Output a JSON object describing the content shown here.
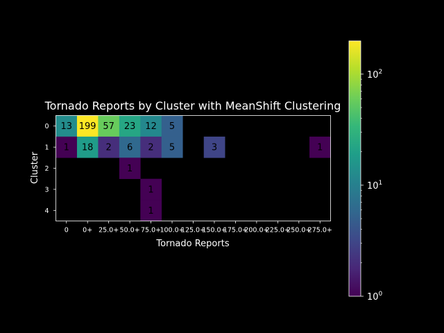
{
  "chart_data": {
    "type": "heatmap",
    "title": "Tornado Reports by Cluster with MeanShift Clustering",
    "xlabel": "Tornado Reports",
    "ylabel": "Cluster",
    "x_categories": [
      "0",
      "0+",
      "25.0+",
      "50.0+",
      "75.0+",
      "100.0+",
      "125.0+",
      "150.0+",
      "175.0+",
      "200.0+",
      "225.0+",
      "250.0+",
      "275.0+"
    ],
    "y_categories": [
      "0",
      "1",
      "2",
      "3",
      "4"
    ],
    "values": [
      [
        13,
        199,
        57,
        23,
        12,
        5,
        0,
        0,
        0,
        0,
        0,
        0,
        0
      ],
      [
        1,
        18,
        2,
        6,
        2,
        5,
        0,
        3,
        0,
        0,
        0,
        0,
        1
      ],
      [
        0,
        0,
        0,
        1,
        0,
        0,
        0,
        0,
        0,
        0,
        0,
        0,
        0
      ],
      [
        0,
        0,
        0,
        0,
        1,
        0,
        0,
        0,
        0,
        0,
        0,
        0,
        0
      ],
      [
        0,
        0,
        0,
        0,
        1,
        0,
        0,
        0,
        0,
        0,
        0,
        0,
        0
      ]
    ],
    "zero_cells": "not drawn",
    "colormap": "viridis",
    "color_scale": "log",
    "colorbar": {
      "range": [
        1,
        199
      ],
      "ticks": [
        {
          "value": 1,
          "base": "10",
          "exp": "0"
        },
        {
          "value": 10,
          "base": "10",
          "exp": "1"
        },
        {
          "value": 100,
          "base": "10",
          "exp": "2"
        }
      ]
    },
    "grid": false,
    "legend": "none"
  },
  "colors": {
    "background": "#000000",
    "text": "#ffffff",
    "cell_text": "#000000"
  }
}
